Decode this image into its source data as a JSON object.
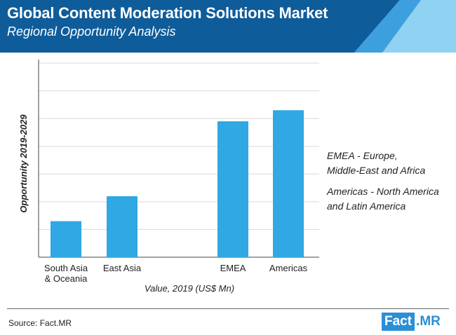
{
  "header": {
    "title": "Global Content Moderation Solutions Market",
    "subtitle": "Regional Opportunity Analysis"
  },
  "colors": {
    "bar": "#2fa8e4",
    "header_dark": "#0f5c9a",
    "header_light": "#8fd2f1",
    "accent": "#2a8fd6"
  },
  "chart_data": {
    "type": "bar",
    "title": "Global Content Moderation Solutions Market",
    "subtitle": "Regional Opportunity Analysis",
    "xlabel": "Value, 2019 (US$ Mn)",
    "ylabel": "Opportunity 2019-2029",
    "categories": [
      "South Asia\n& Oceania",
      "East Asia",
      "EMEA",
      "Americas"
    ],
    "values": [
      13,
      22,
      49,
      53
    ],
    "ylim": [
      0,
      70
    ],
    "grid": true,
    "y_tick_labels_shown": false
  },
  "legend_notes": [
    "EMEA - Europe,\nMiddle-East and Africa",
    "Americas - North America\nand Latin America"
  ],
  "footer": {
    "source": "Source: Fact.MR",
    "logo_left": "Fact",
    "logo_right": ".MR"
  }
}
